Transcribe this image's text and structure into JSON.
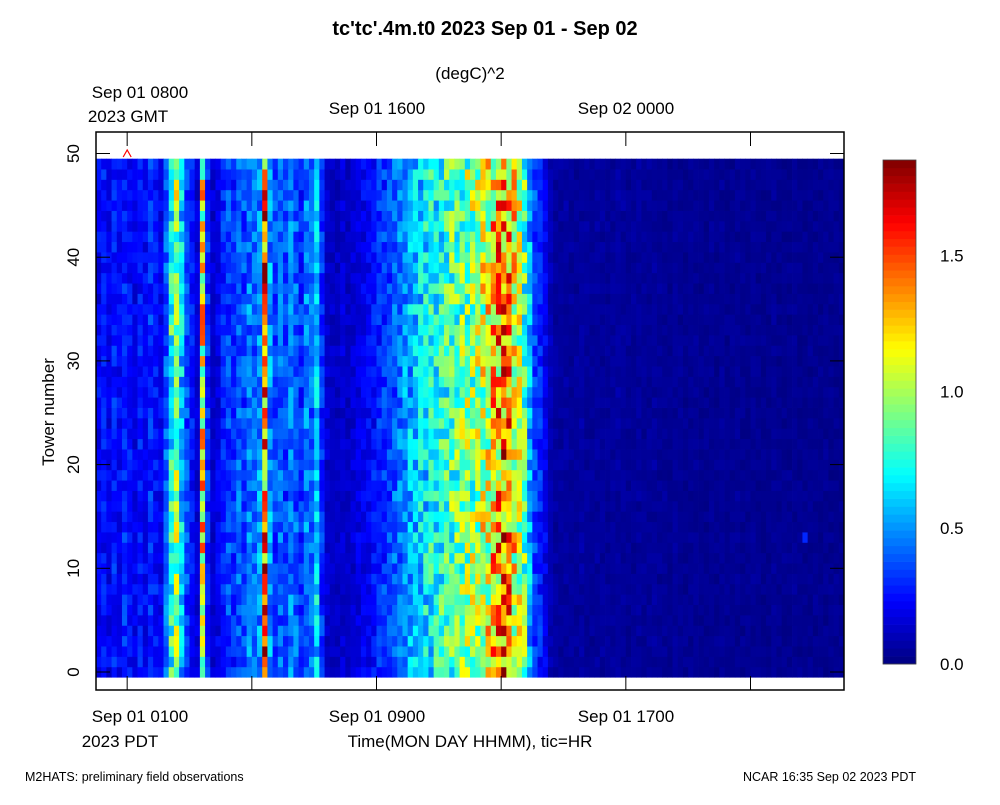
{
  "chart_data": {
    "type": "heatmap",
    "title": "tc'tc'.4m.t0 2023 Sep 01 - Sep 02",
    "units": "(degC)^2",
    "xlabel": "Time(MON DAY HHMM), tic=HR",
    "ylabel": "Tower number",
    "x_range_hours_pdt": [
      0,
      24
    ],
    "y_range": [
      -0.5,
      49.5
    ],
    "towers": 50,
    "column_interval_minutes": 10,
    "color_range": [
      0,
      1.85
    ],
    "colormap": "jet",
    "colorbar_ticks": [
      "0.0",
      "0.5",
      "1.0",
      "1.5"
    ],
    "colorbar_tick_values": [
      0,
      0.5,
      1.0,
      1.5
    ],
    "y_ticks": [
      "0",
      "10",
      "20",
      "30",
      "40",
      "50"
    ],
    "y_tick_values": [
      0,
      10,
      20,
      30,
      40,
      50
    ],
    "x_ticks_hours_pdt": [
      1,
      5,
      9,
      13,
      17,
      21
    ],
    "bottom_labels": [
      {
        "hour": 1,
        "text": "Sep 01 0100"
      },
      {
        "hour": 9,
        "text": "Sep 01 0900"
      },
      {
        "hour": 17,
        "text": "Sep 01 1700"
      }
    ],
    "bottom_zone": "2023 PDT",
    "top_labels": [
      {
        "hour": 1,
        "text": "Sep 01 0800"
      },
      {
        "hour": 9,
        "text": "Sep 01 1600"
      },
      {
        "hour": 17,
        "text": "Sep 02 0000"
      }
    ],
    "top_zone": "2023 GMT",
    "column_means": [
      0.22,
      0.25,
      0.2,
      0.28,
      0.22,
      0.3,
      0.25,
      0.2,
      0.27,
      0.22,
      0.3,
      0.25,
      0.2,
      0.4,
      0.75,
      0.95,
      0.6,
      0.35,
      0.25,
      0.15,
      1.15,
      0.3,
      0.15,
      0.2,
      0.3,
      0.35,
      0.3,
      0.4,
      0.35,
      0.45,
      0.4,
      0.5,
      1.45,
      0.5,
      0.35,
      0.4,
      0.35,
      0.45,
      0.4,
      0.3,
      0.45,
      0.4,
      0.6,
      0.3,
      0.15,
      0.12,
      0.12,
      0.15,
      0.12,
      0.15,
      0.18,
      0.2,
      0.22,
      0.25,
      0.3,
      0.32,
      0.35,
      0.4,
      0.45,
      0.5,
      0.55,
      0.6,
      0.62,
      0.65,
      0.7,
      0.7,
      0.75,
      0.8,
      0.85,
      0.85,
      0.9,
      0.95,
      0.95,
      1.0,
      1.05,
      1.1,
      1.2,
      1.3,
      1.45,
      1.35,
      1.15,
      1.0,
      0.85,
      0.55,
      0.35,
      0.3,
      0.2,
      0.1,
      0.06,
      0.05,
      0.06,
      0.05,
      0.05,
      0.06,
      0.05,
      0.04,
      0.05,
      0.05,
      0.04,
      0.05,
      0.06,
      0.05,
      0.04,
      0.04,
      0.05,
      0.04,
      0.04,
      0.05,
      0.04,
      0.04,
      0.03,
      0.04,
      0.04,
      0.03,
      0.04,
      0.04,
      0.03,
      0.03,
      0.04,
      0.03,
      0.04,
      0.03,
      0.03,
      0.04,
      0.03,
      0.03,
      0.04,
      0.03,
      0.03,
      0.03,
      0.04,
      0.03,
      0.03,
      0.03,
      0.04,
      0.03,
      0.03,
      0.03,
      0.03,
      0.03,
      0.03,
      0.03,
      0.03,
      0.03
    ],
    "anomalies": [
      {
        "column": 136,
        "tower": 13,
        "value": 0.3
      }
    ],
    "marker": {
      "hour": 1,
      "symbol": "^",
      "color": "#ff0000"
    }
  },
  "footer": {
    "left": "M2HATS: preliminary field observations",
    "right": "NCAR 16:35 Sep 02 2023 PDT"
  }
}
